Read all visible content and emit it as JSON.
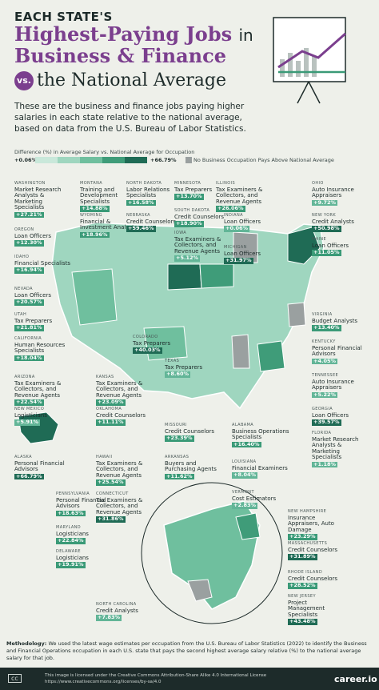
{
  "title": {
    "line1": "EACH STATE'S",
    "line2a": "Highest-Paying Jobs",
    "line2b": "in",
    "line3": "Business & Finance",
    "vs": "vs.",
    "line4": "the National Average"
  },
  "intro": "These are the business and finance jobs paying higher salaries in each state relative to the national average, based on data from the U.S. Bureau of Labor Statistics.",
  "legend": {
    "label": "Difference (%) in Average Salary vs. National Average for Occupation",
    "min": "+0.06%",
    "max": "+66.79%",
    "none": "No Business Occupation Pays Above National Average",
    "colors": [
      "#c9e8da",
      "#9fd6bf",
      "#6fbf9e",
      "#3f9c79",
      "#1f6b55"
    ]
  },
  "labels": [
    {
      "state": "WASHINGTON",
      "job": "Market Research Analysts & Marketing Specialists",
      "pct": "+27.21%"
    },
    {
      "state": "MONTANA",
      "job": "Training and Development Specialists",
      "pct": "+14.88%"
    },
    {
      "state": "NORTH DAKOTA",
      "job": "Labor Relations Specialists",
      "pct": "+16.58%"
    },
    {
      "state": "MINNESOTA",
      "job": "Tax Preparers",
      "pct": "+13.70%"
    },
    {
      "state": "ILLINOIS",
      "job": "Tax Examiners & Collectors, and Revenue Agents",
      "pct": "+26.06%"
    },
    {
      "state": "OHIO",
      "job": "Auto Insurance Appraisers",
      "pct": "+9.72%"
    },
    {
      "state": "WYOMING",
      "job": "Financial & Investment Analysts",
      "pct": "+18.96%"
    },
    {
      "state": "NEBRASKA",
      "job": "Credit Counselors",
      "pct": "+59.46%"
    },
    {
      "state": "SOUTH DAKOTA",
      "job": "Credit Counselors",
      "pct": "+18.90%"
    },
    {
      "state": "INDIANA",
      "job": "Loan Officers",
      "pct": "+0.06%"
    },
    {
      "state": "NEW YORK",
      "job": "Credit Analysts",
      "pct": "+50.98%"
    },
    {
      "state": "OREGON",
      "job": "Loan Officers",
      "pct": "+12.30%"
    },
    {
      "state": "IOWA",
      "job": "Tax Examiners & Collectors, and Revenue Agents",
      "pct": "+5.12%"
    },
    {
      "state": "MICHIGAN",
      "job": "Loan Officers",
      "pct": "+31.97%"
    },
    {
      "state": "MAINE",
      "job": "Loan Officers",
      "pct": "+11.05%"
    },
    {
      "state": "IDAHO",
      "job": "Financial Specialists",
      "pct": "+16.94%"
    },
    {
      "state": "NEVADA",
      "job": "Loan Officers",
      "pct": "+20.57%"
    },
    {
      "state": "UTAH",
      "job": "Tax Preparers",
      "pct": "+21.81%"
    },
    {
      "state": "COLORADO",
      "job": "Tax Preparers",
      "pct": "+40.03%"
    },
    {
      "state": "VIRGINIA",
      "job": "Budget Analysts",
      "pct": "+13.40%"
    },
    {
      "state": "CALIFORNIA",
      "job": "Human Resources Specialists",
      "pct": "+18.04%"
    },
    {
      "state": "KENTUCKY",
      "job": "Personal Financial Advisors",
      "pct": "+4.05%"
    },
    {
      "state": "TEXAS",
      "job": "Tax Preparers",
      "pct": "+8.60%"
    },
    {
      "state": "ARIZONA",
      "job": "Tax Examiners & Collectors, and Revenue Agents",
      "pct": "+22.54%"
    },
    {
      "state": "KANSAS",
      "job": "Tax Examiners & Collectors, and Revenue Agents",
      "pct": "+23.09%"
    },
    {
      "state": "TENNESSEE",
      "job": "Auto Insurance Appraisers",
      "pct": "+5.22%"
    },
    {
      "state": "NEW MEXICO",
      "job": "Logisticians",
      "pct": "+5.91%"
    },
    {
      "state": "OKLAHOMA",
      "job": "Credit Counselors",
      "pct": "+11.11%"
    },
    {
      "state": "GEORGIA",
      "job": "Loan Officers",
      "pct": "+39.57%"
    },
    {
      "state": "MISSOURI",
      "job": "Credit Counselors",
      "pct": "+23.39%"
    },
    {
      "state": "ALABAMA",
      "job": "Business Operations Specialists",
      "pct": "+16.40%"
    },
    {
      "state": "FLORIDA",
      "job": "Market Research Analysts & Marketing Specialists",
      "pct": "+1.18%"
    },
    {
      "state": "ALASKA",
      "job": "Personal Financial Advisors",
      "pct": "+66.79%"
    },
    {
      "state": "HAWAII",
      "job": "Tax Examiners & Collectors, and Revenue Agents",
      "pct": "+25.54%"
    },
    {
      "state": "ARKANSAS",
      "job": "Buyers and Purchasing Agents",
      "pct": "+11.62%"
    },
    {
      "state": "LOUISIANA",
      "job": "Financial Examiners",
      "pct": "+8.04%"
    },
    {
      "state": "CONNECTICUT",
      "job": "Tax Examiners & Collectors, and Revenue Agents",
      "pct": "+31.86%"
    },
    {
      "state": "VERMONT",
      "job": "Cost Estimators",
      "pct": "+2.83%"
    },
    {
      "state": "PENNSYLVANIA",
      "job": "Personal Financial Advisors",
      "pct": "+18.63%"
    },
    {
      "state": "NEW HAMPSHIRE",
      "job": "Insurance Appraisers, Auto Damage",
      "pct": "+23.29%"
    },
    {
      "state": "MARYLAND",
      "job": "Logisticians",
      "pct": "+22.84%"
    },
    {
      "state": "MASSACHUSETTS",
      "job": "Credit Counselors",
      "pct": "+31.89%"
    },
    {
      "state": "DELAWARE",
      "job": "Logisticians",
      "pct": "+19.91%"
    },
    {
      "state": "RHODE ISLAND",
      "job": "Credit Counselors",
      "pct": "+28.52%"
    },
    {
      "state": "NEW JERSEY",
      "job": "Project Management Specialists",
      "pct": "+43.48%"
    },
    {
      "state": "NORTH CAROLINA",
      "job": "Credit Analysts",
      "pct": "+7.83%"
    }
  ],
  "methodology_label": "Methodology:",
  "methodology": "We used the latest wage estimates per occupation from the U.S. Bureau of Labor Statistics (2022) to identify the Business and Financial Operations occupation in each U.S. state that pays the second highest average salary relative (%) to the national average salary for that job.",
  "license": "This image is licensed under the Creative Commons Attribution-Share Alike 4.0 International License https://www.creativecommons.org/licenses/by-sa/4.0",
  "cc": "cc",
  "brand": "career.io"
}
